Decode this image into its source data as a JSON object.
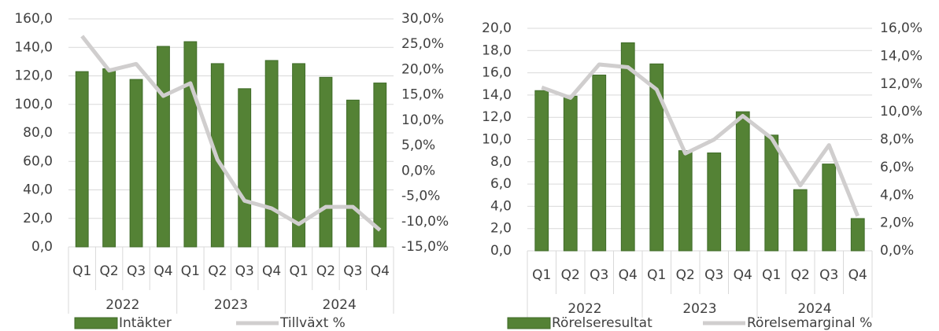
{
  "chart_data": [
    {
      "type": "bar",
      "categories": [
        "Q1",
        "Q2",
        "Q3",
        "Q4",
        "Q1",
        "Q2",
        "Q3",
        "Q4",
        "Q1",
        "Q2",
        "Q3",
        "Q4"
      ],
      "groups": [
        "2022",
        "2023",
        "2024"
      ],
      "series": [
        {
          "name": "Intäkter",
          "type": "bar",
          "color": "#548235",
          "values": [
            123,
            125,
            117.5,
            140.7,
            144,
            128.6,
            111,
            130.8,
            128.6,
            119,
            103,
            115
          ]
        },
        {
          "name": "Tillväxt %",
          "type": "line",
          "axis": "y2",
          "color": "#d0cece",
          "values": [
            26.6,
            19.8,
            21.1,
            14.8,
            17.3,
            2.2,
            -5.9,
            -7.4,
            -10.5,
            -7.1,
            -7.1,
            -11.7
          ]
        }
      ],
      "ylim": [
        0,
        160
      ],
      "yticks": [
        {
          "value": 0,
          "label": "0,0"
        },
        {
          "value": 20,
          "label": "20,0"
        },
        {
          "value": 40,
          "label": "40,0"
        },
        {
          "value": 60,
          "label": "60,0"
        },
        {
          "value": 80,
          "label": "80,0"
        },
        {
          "value": 100,
          "label": "100,0"
        },
        {
          "value": 120,
          "label": "120,0"
        },
        {
          "value": 140,
          "label": "140,0"
        },
        {
          "value": 160,
          "label": "160,0"
        }
      ],
      "y2lim": [
        -15,
        30
      ],
      "y2ticks": [
        {
          "value": -15,
          "label": "-15,0%"
        },
        {
          "value": -10,
          "label": "-10,0%"
        },
        {
          "value": -5,
          "label": "-5,0%"
        },
        {
          "value": 0,
          "label": "0,0%"
        },
        {
          "value": 5,
          "label": "5,0%"
        },
        {
          "value": 10,
          "label": "10,0%"
        },
        {
          "value": 15,
          "label": "15,0%"
        },
        {
          "value": 20,
          "label": "20,0%"
        },
        {
          "value": 25,
          "label": "25,0%"
        },
        {
          "value": 30,
          "label": "30,0%"
        }
      ],
      "grid": true
    },
    {
      "type": "bar",
      "categories": [
        "Q1",
        "Q2",
        "Q3",
        "Q4",
        "Q1",
        "Q2",
        "Q3",
        "Q4",
        "Q1",
        "Q2",
        "Q3",
        "Q4"
      ],
      "groups": [
        "2022",
        "2023",
        "2024"
      ],
      "series": [
        {
          "name": "Rörelseresultat",
          "type": "bar",
          "color": "#548235",
          "values": [
            14.4,
            13.9,
            15.8,
            18.7,
            16.8,
            9.0,
            8.8,
            12.5,
            10.4,
            5.5,
            7.8,
            2.9
          ]
        },
        {
          "name": "Rörelsemarginal %",
          "type": "line",
          "axis": "y2",
          "color": "#d0cece",
          "values": [
            11.75,
            11.0,
            13.4,
            13.2,
            11.6,
            7.0,
            8.0,
            9.7,
            8.1,
            4.7,
            7.6,
            2.5
          ]
        }
      ],
      "ylim": [
        0,
        20
      ],
      "yticks": [
        {
          "value": 0,
          "label": "0,0"
        },
        {
          "value": 2,
          "label": "2,0"
        },
        {
          "value": 4,
          "label": "4,0"
        },
        {
          "value": 6,
          "label": "6,0"
        },
        {
          "value": 8,
          "label": "8,0"
        },
        {
          "value": 10,
          "label": "10,0"
        },
        {
          "value": 12,
          "label": "12,0"
        },
        {
          "value": 14,
          "label": "14,0"
        },
        {
          "value": 16,
          "label": "16,0"
        },
        {
          "value": 18,
          "label": "18,0"
        },
        {
          "value": 20,
          "label": "20,0"
        }
      ],
      "y2lim": [
        0,
        16
      ],
      "y2ticks": [
        {
          "value": 0,
          "label": "0,0%"
        },
        {
          "value": 2,
          "label": "2,0%"
        },
        {
          "value": 4,
          "label": "4,0%"
        },
        {
          "value": 6,
          "label": "6,0%"
        },
        {
          "value": 8,
          "label": "8,0%"
        },
        {
          "value": 10,
          "label": "10,0%"
        },
        {
          "value": 12,
          "label": "12,0%"
        },
        {
          "value": 14,
          "label": "14,0%"
        },
        {
          "value": 16,
          "label": "16,0%"
        }
      ],
      "grid": true
    }
  ]
}
